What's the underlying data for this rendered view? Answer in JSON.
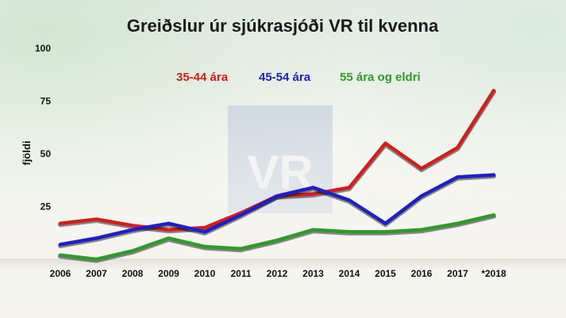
{
  "chart_data": {
    "type": "line",
    "title": "Greiðslur úr sjúkrasjóði VR til kvenna",
    "ylabel": "fjöldi",
    "xlabel": "",
    "categories": [
      "2006",
      "2007",
      "2008",
      "2009",
      "2010",
      "2011",
      "2012",
      "2013",
      "2014",
      "2015",
      "2016",
      "2017",
      "*2018"
    ],
    "ylim": [
      0,
      100
    ],
    "yticks": [
      "100",
      "75",
      "50",
      "25"
    ],
    "grid": false,
    "legend_position": "top",
    "series": [
      {
        "name": "35-44 ára",
        "color": "#d21e1e",
        "values": [
          17,
          19,
          16,
          14,
          15,
          22,
          30,
          31,
          34,
          55,
          43,
          53,
          80
        ]
      },
      {
        "name": "45-54 ára",
        "color": "#1f1fc4",
        "values": [
          7,
          10,
          14,
          17,
          13,
          21,
          30,
          34,
          28,
          17,
          30,
          39,
          40
        ]
      },
      {
        "name": "55 ára og eldri",
        "color": "#2f9a2a",
        "values": [
          2,
          0,
          4,
          10,
          6,
          5,
          9,
          14,
          13,
          13,
          14,
          17,
          21
        ]
      }
    ]
  },
  "watermark": "VR"
}
